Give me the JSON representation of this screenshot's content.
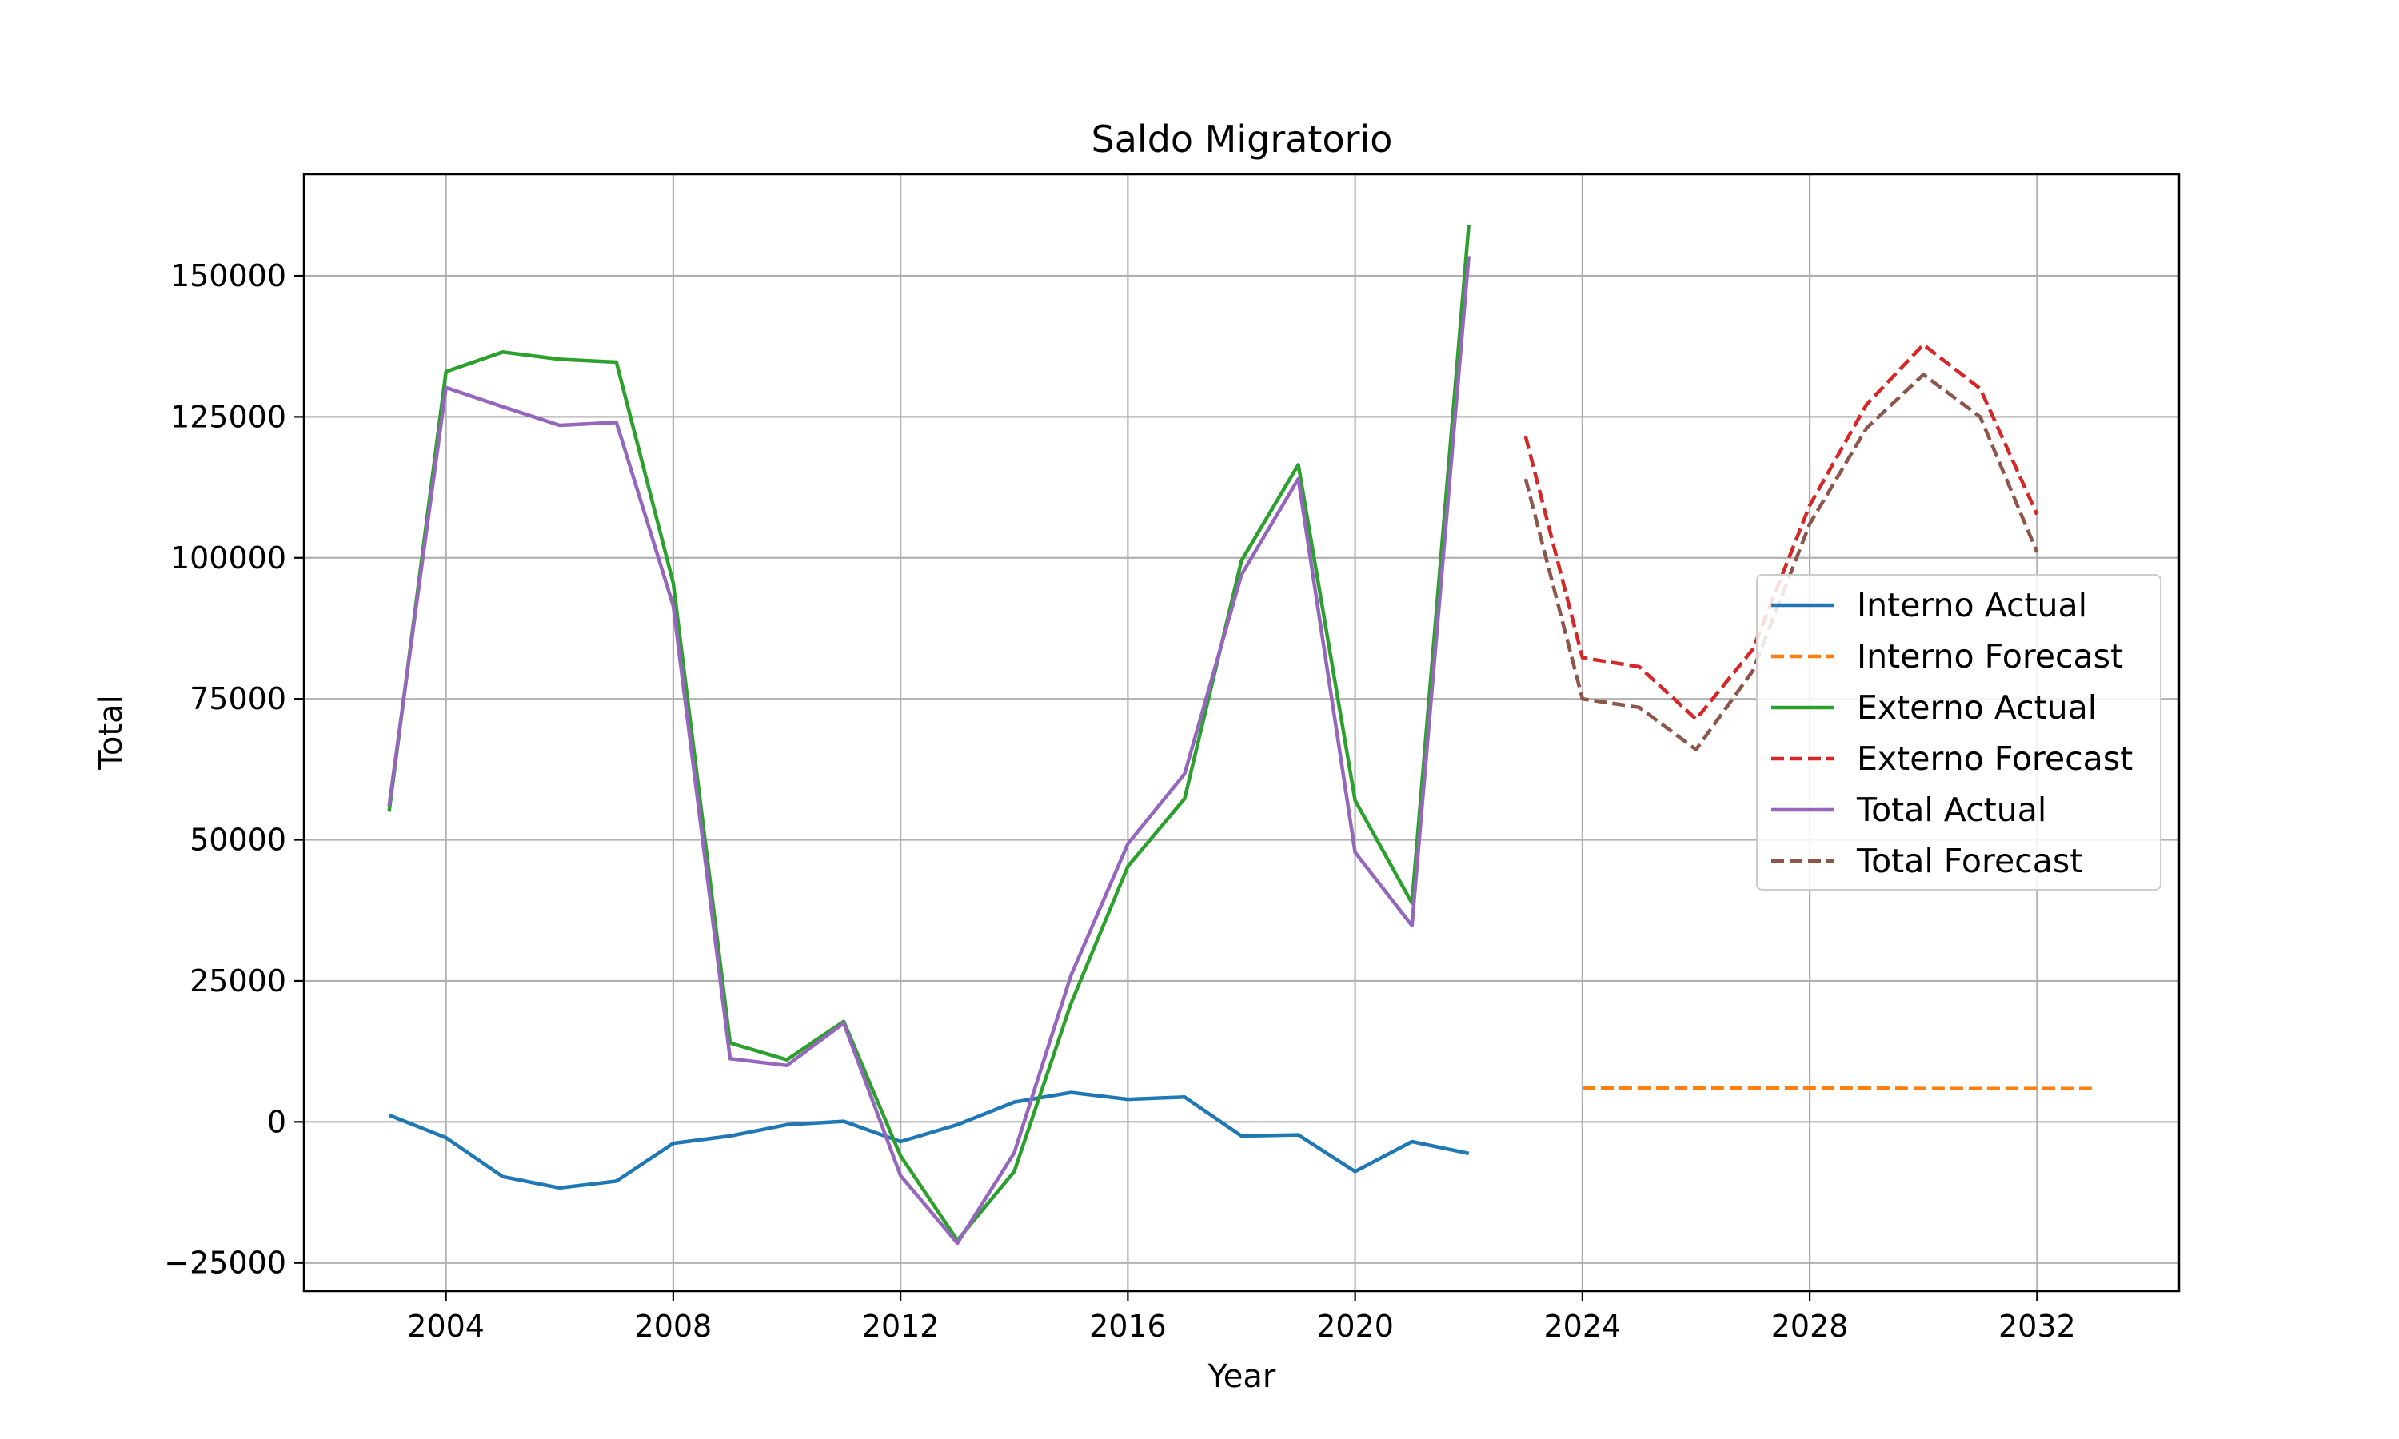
{
  "chart_data": {
    "type": "line",
    "title": "Saldo Migratorio",
    "xlabel": "Year",
    "ylabel": "Total",
    "xlim": [
      2001.5,
      2034.5
    ],
    "ylim": [
      -30000,
      168000
    ],
    "xticks": [
      2004,
      2008,
      2012,
      2016,
      2020,
      2024,
      2028,
      2032
    ],
    "yticks": [
      -25000,
      0,
      25000,
      50000,
      75000,
      100000,
      125000,
      150000
    ],
    "grid": true,
    "legend_position": "center-right",
    "series": [
      {
        "name": "Interno Actual",
        "color": "#1f77b4",
        "style": "solid",
        "x": [
          2003,
          2004,
          2005,
          2006,
          2007,
          2008,
          2009,
          2010,
          2011,
          2012,
          2013,
          2014,
          2015,
          2016,
          2017,
          2018,
          2019,
          2020,
          2021,
          2022
        ],
        "y": [
          1200,
          -2800,
          -9700,
          -11700,
          -10500,
          -3800,
          -2500,
          -500,
          100,
          -3500,
          -500,
          3500,
          5200,
          4000,
          4400,
          -2500,
          -2300,
          -8800,
          -3500,
          -5600
        ]
      },
      {
        "name": "Interno Forecast",
        "color": "#ff7f0e",
        "style": "dashed",
        "x": [
          2024,
          2025,
          2026,
          2027,
          2028,
          2029,
          2030,
          2031,
          2032,
          2033
        ],
        "y": [
          6000,
          6000,
          6000,
          6000,
          6000,
          6000,
          5900,
          5900,
          5900,
          5900
        ]
      },
      {
        "name": "Externo Actual",
        "color": "#2ca02c",
        "style": "solid",
        "x": [
          2003,
          2004,
          2005,
          2006,
          2007,
          2008,
          2009,
          2010,
          2011,
          2012,
          2013,
          2014,
          2015,
          2016,
          2017,
          2018,
          2019,
          2020,
          2021,
          2022
        ],
        "y": [
          55000,
          133000,
          136500,
          135200,
          134700,
          95500,
          14000,
          11000,
          17800,
          -6000,
          -21000,
          -8800,
          21000,
          45300,
          57300,
          99500,
          116500,
          57000,
          38800,
          159000
        ]
      },
      {
        "name": "Externo Forecast",
        "color": "#d62728",
        "style": "dashed",
        "x": [
          2023,
          2024,
          2025,
          2026,
          2027,
          2028,
          2029,
          2030,
          2031,
          2032
        ],
        "y": [
          121500,
          82300,
          80700,
          71400,
          83800,
          109300,
          127200,
          137800,
          130000,
          107700
        ]
      },
      {
        "name": "Total Actual",
        "color": "#9467bd",
        "style": "solid",
        "x": [
          2003,
          2004,
          2005,
          2006,
          2007,
          2008,
          2009,
          2010,
          2011,
          2012,
          2013,
          2014,
          2015,
          2016,
          2017,
          2018,
          2019,
          2020,
          2021,
          2022
        ],
        "y": [
          56000,
          130200,
          126800,
          123500,
          124000,
          91500,
          11200,
          10000,
          17500,
          -9500,
          -21500,
          -5500,
          26000,
          49300,
          61700,
          97000,
          114000,
          47800,
          34800,
          153500
        ]
      },
      {
        "name": "Total Forecast",
        "color": "#8c564b",
        "style": "dashed",
        "x": [
          2023,
          2024,
          2025,
          2026,
          2027,
          2028,
          2029,
          2030,
          2031,
          2032
        ],
        "y": [
          114000,
          75000,
          73500,
          66000,
          80000,
          106000,
          123000,
          132500,
          125000,
          101000
        ]
      }
    ]
  }
}
